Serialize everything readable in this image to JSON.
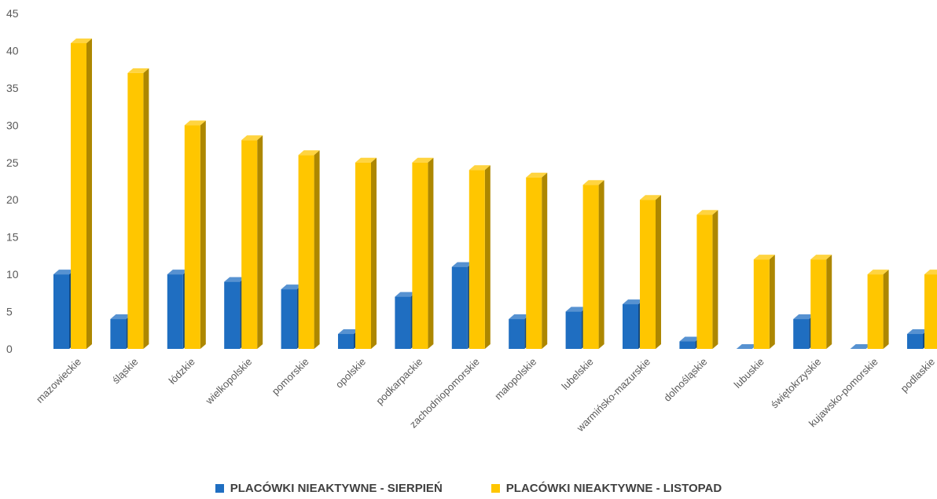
{
  "chart_data": {
    "type": "bar",
    "categories": [
      "mazowieckie",
      "śląskie",
      "łódzkie",
      "wielkopolskie",
      "pomorskie",
      "opolskie",
      "podkarpackie",
      "zachodniopomorskie",
      "małopolskie",
      "lubelskie",
      "warmińsko-mazurskie",
      "dolnośląskie",
      "lubuskie",
      "świętokrzyskie",
      "kujawsko-pomorskie",
      "podlaskie"
    ],
    "series": [
      {
        "name": "PLACÓWKI NIEAKTYWNE - SIERPIEŃ",
        "color": "#1F6EC1",
        "values": [
          10,
          4,
          10,
          9,
          8,
          2,
          7,
          11,
          4,
          5,
          6,
          1,
          0,
          4,
          0,
          2
        ]
      },
      {
        "name": "PLACÓWKI NIEAKTYWNE - LISTOPAD",
        "color": "#FFC600",
        "values": [
          41,
          37,
          30,
          28,
          26,
          25,
          25,
          24,
          23,
          22,
          20,
          18,
          12,
          12,
          10,
          10
        ]
      }
    ],
    "yticks": [
      "0",
      "5",
      "10",
      "15",
      "20",
      "25",
      "30",
      "35",
      "40",
      "45"
    ],
    "ylim": [
      0,
      45
    ],
    "grid": false,
    "legend_position": "bottom",
    "style": "3d"
  }
}
